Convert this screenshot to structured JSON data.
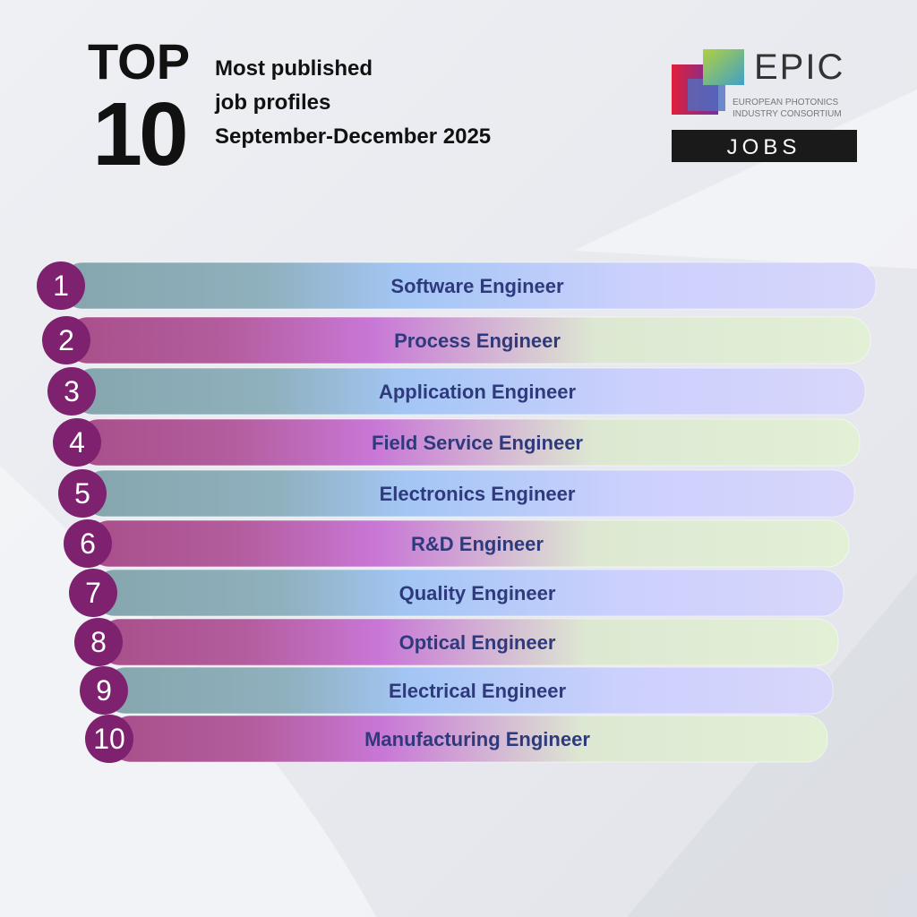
{
  "header": {
    "top": "TOP",
    "number": "10",
    "subtitle": [
      "Most published",
      "job profiles",
      "September-December 2025"
    ]
  },
  "logo": {
    "name": "EPIC",
    "line1": "EUROPEAN PHOTONICS",
    "line2": "INDUSTRY CONSORTIUM",
    "badge": "JOBS"
  },
  "list": [
    {
      "rank": "1",
      "label": "Software Engineer"
    },
    {
      "rank": "2",
      "label": "Process Engineer"
    },
    {
      "rank": "3",
      "label": "Application Engineer"
    },
    {
      "rank": "4",
      "label": "Field Service Engineer"
    },
    {
      "rank": "5",
      "label": "Electronics Engineer"
    },
    {
      "rank": "6",
      "label": "R&D Engineer"
    },
    {
      "rank": "7",
      "label": "Quality Engineer"
    },
    {
      "rank": "8",
      "label": "Optical Engineer"
    },
    {
      "rank": "9",
      "label": "Electrical Engineer"
    },
    {
      "rank": "10",
      "label": "Manufacturing Engineer"
    }
  ]
}
